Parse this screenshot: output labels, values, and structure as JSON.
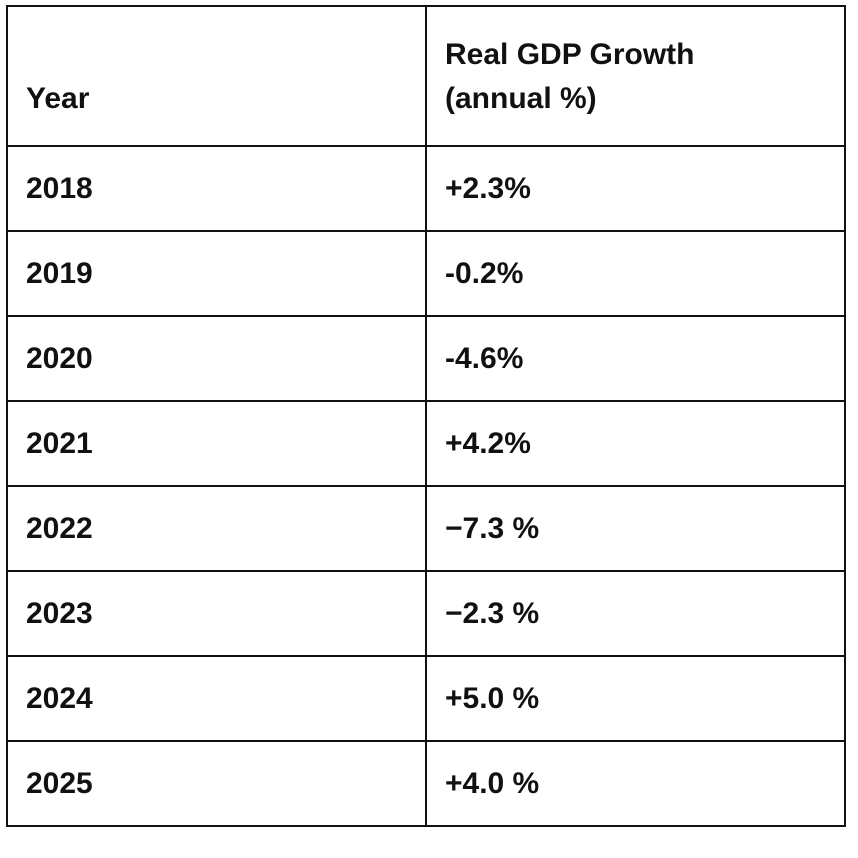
{
  "table": {
    "header": [
      "Year",
      "Real GDP Growth (annual %)"
    ],
    "rows": [
      [
        "2018",
        "+2.3%"
      ],
      [
        "2019",
        "-0.2%"
      ],
      [
        "2020",
        "-4.6%"
      ],
      [
        "2021",
        "+4.2%"
      ],
      [
        "2022",
        "−7.3 %"
      ],
      [
        "2023",
        "−2.3 %"
      ],
      [
        "2024",
        "+5.0 %"
      ],
      [
        "2025",
        "+4.0 %"
      ]
    ]
  }
}
